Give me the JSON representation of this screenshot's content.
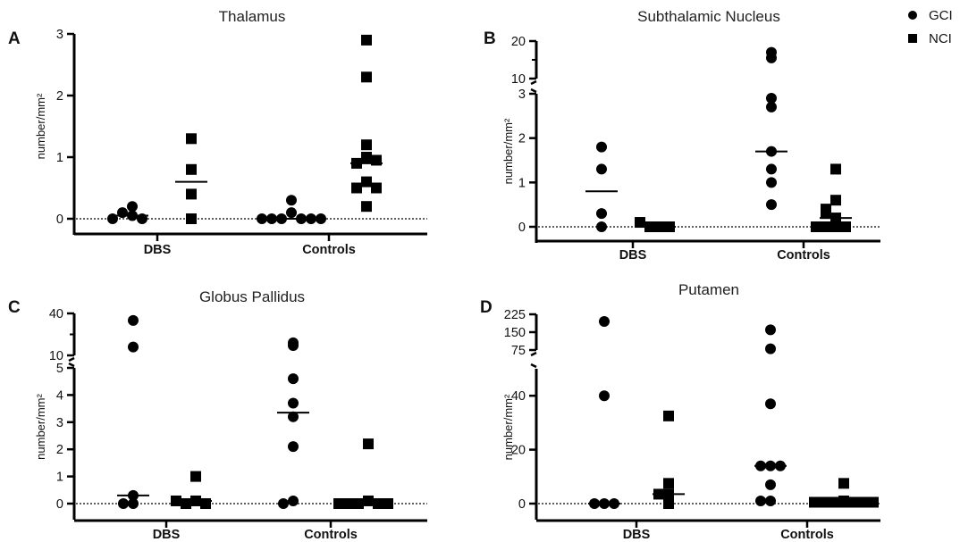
{
  "legend": [
    {
      "label": "GCI",
      "marker": "circle"
    },
    {
      "label": "NCI",
      "marker": "square"
    }
  ],
  "chart_data": [
    {
      "panel": "A",
      "type": "scatter",
      "title": "Thalamus",
      "ylabel": "number/mm²",
      "categories": [
        "DBS",
        "Controls"
      ],
      "ylim": [
        0,
        3
      ],
      "yticks": [
        "0",
        "1",
        "2",
        "3"
      ],
      "series": [
        {
          "name": "GCI",
          "marker": "circle",
          "points": [
            {
              "cat": "DBS",
              "values": [
                0.05,
                0.1,
                0.2,
                0.0,
                0.0
              ]
            },
            {
              "cat": "Controls",
              "values": [
                0.3,
                0.1,
                0.0,
                0.0,
                0.0,
                0.0,
                0.0,
                0.0
              ]
            }
          ]
        },
        {
          "name": "NCI",
          "marker": "square",
          "points": [
            {
              "cat": "DBS",
              "values": [
                1.3,
                0.8,
                0.4,
                0.0
              ]
            },
            {
              "cat": "Controls",
              "values": [
                2.9,
                2.3,
                1.2,
                1.0,
                0.9,
                0.95,
                0.6,
                0.5,
                0.5,
                0.2
              ]
            }
          ]
        }
      ],
      "medians": [
        {
          "cat": "DBS",
          "series": "GCI",
          "value": 0.05
        },
        {
          "cat": "DBS",
          "series": "NCI",
          "value": 0.6
        },
        {
          "cat": "Controls",
          "series": "GCI",
          "value": 0.0
        },
        {
          "cat": "Controls",
          "series": "NCI",
          "value": 0.9
        }
      ]
    },
    {
      "panel": "B",
      "type": "scatter",
      "title": "Subthalamic Nucleus",
      "ylabel": "number/mm²",
      "categories": [
        "DBS",
        "Controls"
      ],
      "broken_axis": true,
      "ylim_lower": [
        0,
        3
      ],
      "ylim_upper": [
        10,
        20
      ],
      "yticks": [
        "0",
        "1",
        "2",
        "3",
        "10",
        "20"
      ],
      "series": [
        {
          "name": "GCI",
          "marker": "circle",
          "points": [
            {
              "cat": "DBS",
              "values": [
                1.8,
                1.3,
                0.3,
                0.0
              ]
            },
            {
              "cat": "Controls",
              "values": [
                17,
                15.5,
                2.9,
                2.7,
                1.7,
                1.3,
                1.0,
                0.5
              ]
            }
          ]
        },
        {
          "name": "NCI",
          "marker": "square",
          "points": [
            {
              "cat": "DBS",
              "values": [
                0.0,
                0.0,
                0.0,
                0.1
              ]
            },
            {
              "cat": "Controls",
              "values": [
                1.3,
                0.6,
                0.4,
                0.2,
                0.3,
                0.0,
                0.0,
                0.0,
                0.0
              ]
            }
          ]
        }
      ],
      "medians": [
        {
          "cat": "DBS",
          "series": "GCI",
          "value": 0.8
        },
        {
          "cat": "DBS",
          "series": "NCI",
          "value": 0.0
        },
        {
          "cat": "Controls",
          "series": "GCI",
          "value": 1.7
        },
        {
          "cat": "Controls",
          "series": "NCI",
          "value": 0.2
        }
      ]
    },
    {
      "panel": "C",
      "type": "scatter",
      "title": "Globus Pallidus",
      "ylabel": "number/mm²",
      "categories": [
        "DBS",
        "Controls"
      ],
      "broken_axis": true,
      "ylim_lower": [
        0,
        5
      ],
      "ylim_upper": [
        10,
        40
      ],
      "yticks": [
        "0",
        "1",
        "2",
        "3",
        "4",
        "5",
        "10",
        "40"
      ],
      "series": [
        {
          "name": "GCI",
          "marker": "circle",
          "points": [
            {
              "cat": "DBS",
              "values": [
                35,
                16,
                0.3,
                0.0,
                0.0
              ]
            },
            {
              "cat": "Controls",
              "values": [
                19,
                17,
                4.6,
                3.7,
                3.2,
                2.1,
                0.1,
                0.0
              ]
            }
          ]
        },
        {
          "name": "NCI",
          "marker": "square",
          "points": [
            {
              "cat": "DBS",
              "values": [
                1.0,
                0.1,
                0.0,
                0.0,
                0.1
              ]
            },
            {
              "cat": "Controls",
              "values": [
                2.2,
                0.1,
                0.0,
                0.0,
                0.0,
                0.0,
                0.0
              ]
            }
          ]
        }
      ],
      "medians": [
        {
          "cat": "DBS",
          "series": "GCI",
          "value": 0.3
        },
        {
          "cat": "DBS",
          "series": "NCI",
          "value": 0.1
        },
        {
          "cat": "Controls",
          "series": "GCI",
          "value": 3.35
        },
        {
          "cat": "Controls",
          "series": "NCI",
          "value": 0.0
        }
      ]
    },
    {
      "panel": "D",
      "type": "scatter",
      "title": "Putamen",
      "ylabel": "number/mm²",
      "categories": [
        "DBS",
        "Controls"
      ],
      "broken_axis": true,
      "ylim_lower": [
        0,
        50
      ],
      "ylim_upper": [
        75,
        225
      ],
      "yticks": [
        "0",
        "20",
        "40",
        "75",
        "150",
        "225"
      ],
      "series": [
        {
          "name": "GCI",
          "marker": "circle",
          "points": [
            {
              "cat": "DBS",
              "values": [
                195,
                40,
                0.0,
                0.0,
                0.0
              ]
            },
            {
              "cat": "Controls",
              "values": [
                160,
                80,
                37,
                14,
                14,
                14,
                7,
                1,
                1
              ]
            }
          ]
        },
        {
          "name": "NCI",
          "marker": "square",
          "points": [
            {
              "cat": "DBS",
              "values": [
                32.5,
                7.5,
                3.5,
                3.5,
                0.0
              ]
            },
            {
              "cat": "Controls",
              "values": [
                7.5,
                1,
                0.5,
                0.5,
                0.5,
                0.5,
                0.5,
                0.5,
                0.5
              ]
            }
          ]
        }
      ],
      "medians": [
        {
          "cat": "DBS",
          "series": "GCI",
          "value": 0.0
        },
        {
          "cat": "DBS",
          "series": "NCI",
          "value": 3.5
        },
        {
          "cat": "Controls",
          "series": "GCI",
          "value": 14.0
        },
        {
          "cat": "Controls",
          "series": "NCI",
          "value": 0.5
        }
      ]
    }
  ]
}
